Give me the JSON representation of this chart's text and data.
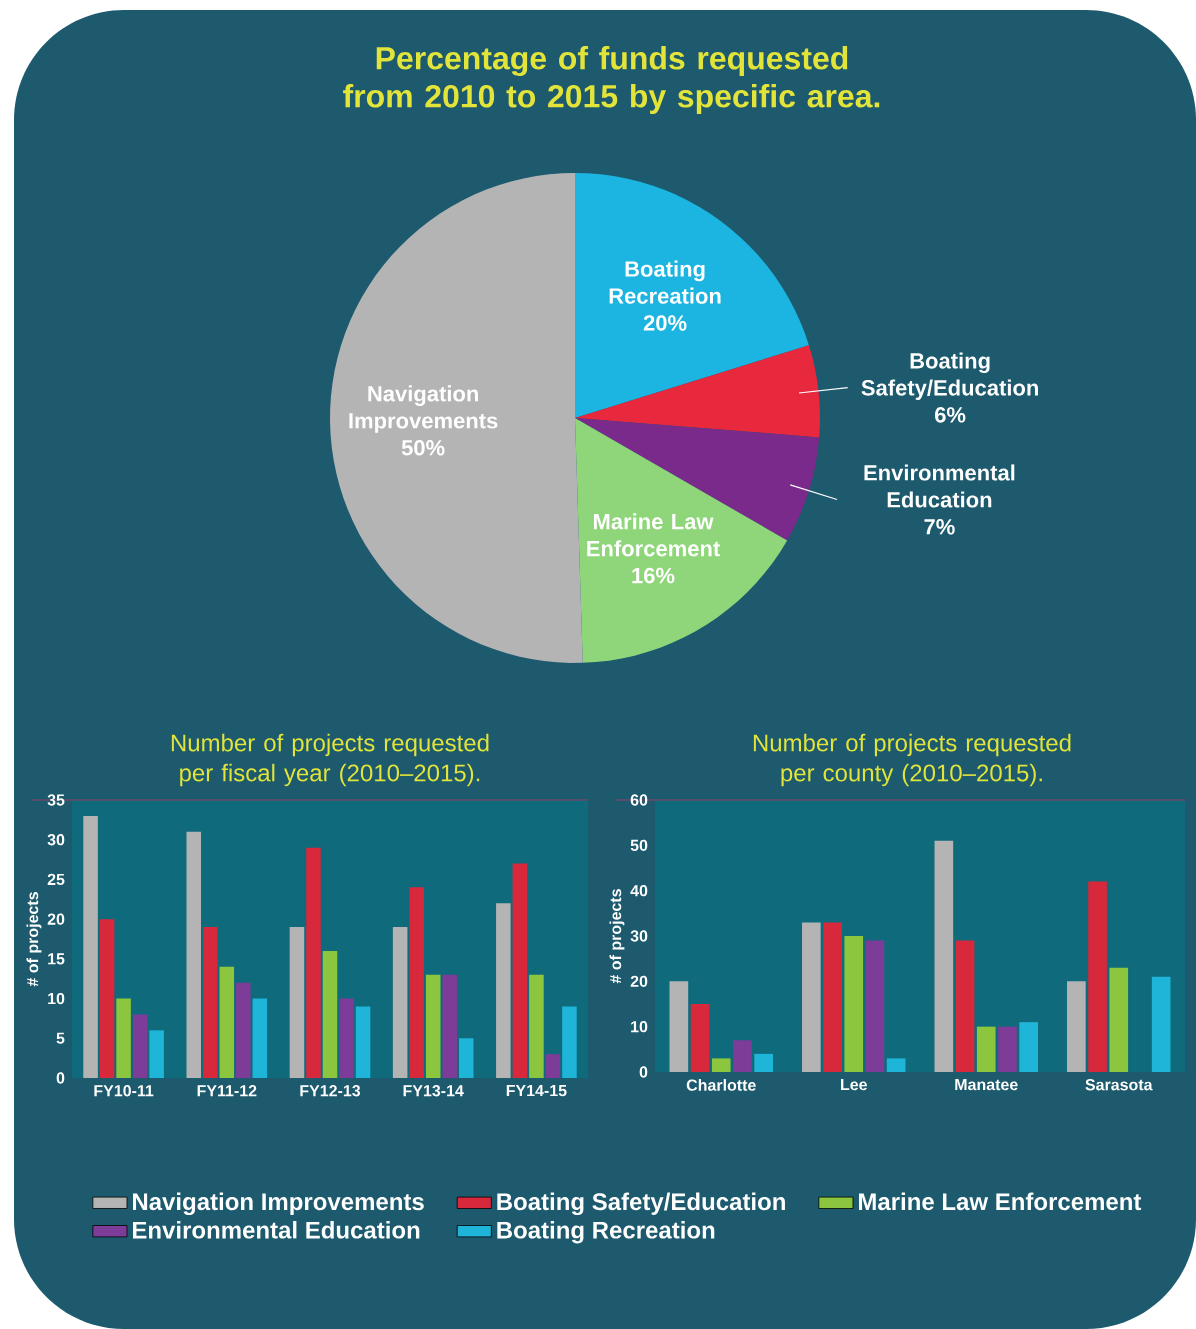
{
  "chart_data": [
    {
      "type": "pie",
      "title": "Percentage of funds requested from 2010 to 2015 by specific area.",
      "categories": [
        "Boating Recreation",
        "Boating Safety/Education",
        "Environmental Education",
        "Marine Law Enforcement",
        "Navigation Improvements"
      ],
      "values": [
        20,
        6,
        7,
        16,
        50
      ],
      "value_labels": [
        "20%",
        "6%",
        "7%",
        "16%",
        "50%"
      ],
      "colors": [
        "#1cb4e0",
        "#e8283c",
        "#7a2a8a",
        "#8fd67a",
        "#b4b4b4"
      ]
    },
    {
      "type": "bar",
      "title": "Number of projects requested per fiscal year (2010–2015).",
      "ylabel": "# of projects",
      "categories": [
        "FY10-11",
        "FY11-12",
        "FY12-13",
        "FY13-14",
        "FY14-15"
      ],
      "ylim": [
        0,
        35
      ],
      "yticks": [
        0,
        5,
        10,
        15,
        20,
        25,
        30,
        35
      ],
      "legend": "bottom",
      "series": [
        {
          "name": "Navigation Improvements",
          "color": "#b4b4b4",
          "values": [
            33,
            31,
            19,
            19,
            22
          ]
        },
        {
          "name": "Boating Safety/Education",
          "color": "#d8283c",
          "values": [
            20,
            19,
            29,
            24,
            27
          ]
        },
        {
          "name": "Marine Law Enforcement",
          "color": "#8cc63e",
          "values": [
            10,
            14,
            16,
            13,
            13
          ]
        },
        {
          "name": "Environmental Education",
          "color": "#7d3c98",
          "values": [
            8,
            12,
            10,
            13,
            3
          ]
        },
        {
          "name": "Boating Recreation",
          "color": "#1fb5d8",
          "values": [
            6,
            10,
            9,
            5,
            9
          ]
        }
      ]
    },
    {
      "type": "bar",
      "title": "Number of projects requested per county (2010–2015).",
      "ylabel": "# of projects",
      "categories": [
        "Charlotte",
        "Lee",
        "Manatee",
        "Sarasota"
      ],
      "ylim": [
        0,
        60
      ],
      "yticks": [
        0,
        10,
        20,
        30,
        40,
        50,
        60
      ],
      "series": [
        {
          "color": "#b4b4b4",
          "values": [
            20,
            33,
            51,
            20
          ]
        },
        {
          "color": "#d8283c",
          "values": [
            15,
            33,
            29,
            42
          ]
        },
        {
          "color": "#8cc63e",
          "values": [
            3,
            30,
            10,
            23
          ]
        },
        {
          "color": "#7d3c98",
          "values": [
            7,
            29,
            10,
            0
          ]
        },
        {
          "color": "#1fb5d8",
          "values": [
            4,
            3,
            11,
            21
          ]
        }
      ]
    }
  ]
}
